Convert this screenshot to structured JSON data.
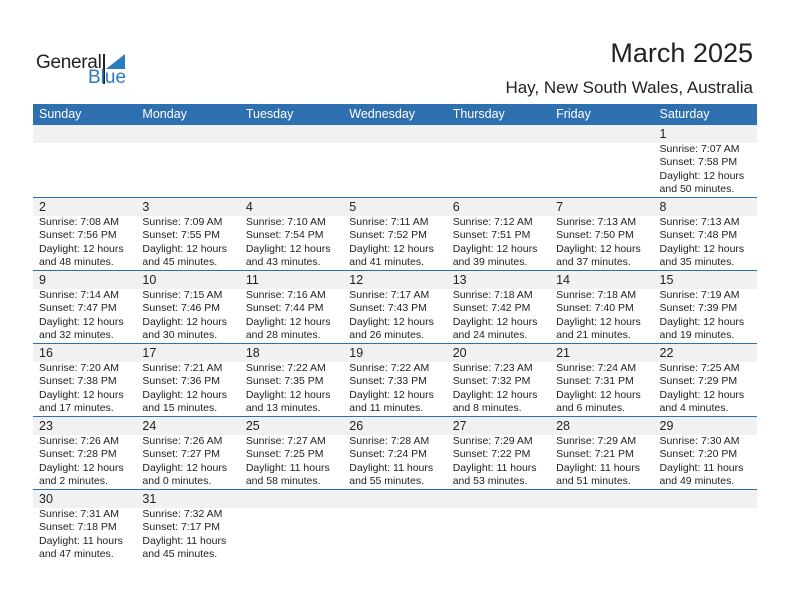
{
  "logo": {
    "text_general": "General",
    "text_blue": "Blue"
  },
  "header": {
    "title": "March 2025",
    "location": "Hay, New South Wales, Australia"
  },
  "colors": {
    "header_bg": "#2e6fb0",
    "accent": "#2b7bc0",
    "strip": "#f1f1f1"
  },
  "weekdays": [
    "Sunday",
    "Monday",
    "Tuesday",
    "Wednesday",
    "Thursday",
    "Friday",
    "Saturday"
  ],
  "weeks": [
    [
      null,
      null,
      null,
      null,
      null,
      null,
      {
        "day": "1",
        "sunrise": "Sunrise: 7:07 AM",
        "sunset": "Sunset: 7:58 PM",
        "daylight": "Daylight: 12 hours",
        "minutes": "and 50 minutes."
      }
    ],
    [
      {
        "day": "2",
        "sunrise": "Sunrise: 7:08 AM",
        "sunset": "Sunset: 7:56 PM",
        "daylight": "Daylight: 12 hours",
        "minutes": "and 48 minutes."
      },
      {
        "day": "3",
        "sunrise": "Sunrise: 7:09 AM",
        "sunset": "Sunset: 7:55 PM",
        "daylight": "Daylight: 12 hours",
        "minutes": "and 45 minutes."
      },
      {
        "day": "4",
        "sunrise": "Sunrise: 7:10 AM",
        "sunset": "Sunset: 7:54 PM",
        "daylight": "Daylight: 12 hours",
        "minutes": "and 43 minutes."
      },
      {
        "day": "5",
        "sunrise": "Sunrise: 7:11 AM",
        "sunset": "Sunset: 7:52 PM",
        "daylight": "Daylight: 12 hours",
        "minutes": "and 41 minutes."
      },
      {
        "day": "6",
        "sunrise": "Sunrise: 7:12 AM",
        "sunset": "Sunset: 7:51 PM",
        "daylight": "Daylight: 12 hours",
        "minutes": "and 39 minutes."
      },
      {
        "day": "7",
        "sunrise": "Sunrise: 7:13 AM",
        "sunset": "Sunset: 7:50 PM",
        "daylight": "Daylight: 12 hours",
        "minutes": "and 37 minutes."
      },
      {
        "day": "8",
        "sunrise": "Sunrise: 7:13 AM",
        "sunset": "Sunset: 7:48 PM",
        "daylight": "Daylight: 12 hours",
        "minutes": "and 35 minutes."
      }
    ],
    [
      {
        "day": "9",
        "sunrise": "Sunrise: 7:14 AM",
        "sunset": "Sunset: 7:47 PM",
        "daylight": "Daylight: 12 hours",
        "minutes": "and 32 minutes."
      },
      {
        "day": "10",
        "sunrise": "Sunrise: 7:15 AM",
        "sunset": "Sunset: 7:46 PM",
        "daylight": "Daylight: 12 hours",
        "minutes": "and 30 minutes."
      },
      {
        "day": "11",
        "sunrise": "Sunrise: 7:16 AM",
        "sunset": "Sunset: 7:44 PM",
        "daylight": "Daylight: 12 hours",
        "minutes": "and 28 minutes."
      },
      {
        "day": "12",
        "sunrise": "Sunrise: 7:17 AM",
        "sunset": "Sunset: 7:43 PM",
        "daylight": "Daylight: 12 hours",
        "minutes": "and 26 minutes."
      },
      {
        "day": "13",
        "sunrise": "Sunrise: 7:18 AM",
        "sunset": "Sunset: 7:42 PM",
        "daylight": "Daylight: 12 hours",
        "minutes": "and 24 minutes."
      },
      {
        "day": "14",
        "sunrise": "Sunrise: 7:18 AM",
        "sunset": "Sunset: 7:40 PM",
        "daylight": "Daylight: 12 hours",
        "minutes": "and 21 minutes."
      },
      {
        "day": "15",
        "sunrise": "Sunrise: 7:19 AM",
        "sunset": "Sunset: 7:39 PM",
        "daylight": "Daylight: 12 hours",
        "minutes": "and 19 minutes."
      }
    ],
    [
      {
        "day": "16",
        "sunrise": "Sunrise: 7:20 AM",
        "sunset": "Sunset: 7:38 PM",
        "daylight": "Daylight: 12 hours",
        "minutes": "and 17 minutes."
      },
      {
        "day": "17",
        "sunrise": "Sunrise: 7:21 AM",
        "sunset": "Sunset: 7:36 PM",
        "daylight": "Daylight: 12 hours",
        "minutes": "and 15 minutes."
      },
      {
        "day": "18",
        "sunrise": "Sunrise: 7:22 AM",
        "sunset": "Sunset: 7:35 PM",
        "daylight": "Daylight: 12 hours",
        "minutes": "and 13 minutes."
      },
      {
        "day": "19",
        "sunrise": "Sunrise: 7:22 AM",
        "sunset": "Sunset: 7:33 PM",
        "daylight": "Daylight: 12 hours",
        "minutes": "and 11 minutes."
      },
      {
        "day": "20",
        "sunrise": "Sunrise: 7:23 AM",
        "sunset": "Sunset: 7:32 PM",
        "daylight": "Daylight: 12 hours",
        "minutes": "and 8 minutes."
      },
      {
        "day": "21",
        "sunrise": "Sunrise: 7:24 AM",
        "sunset": "Sunset: 7:31 PM",
        "daylight": "Daylight: 12 hours",
        "minutes": "and 6 minutes."
      },
      {
        "day": "22",
        "sunrise": "Sunrise: 7:25 AM",
        "sunset": "Sunset: 7:29 PM",
        "daylight": "Daylight: 12 hours",
        "minutes": "and 4 minutes."
      }
    ],
    [
      {
        "day": "23",
        "sunrise": "Sunrise: 7:26 AM",
        "sunset": "Sunset: 7:28 PM",
        "daylight": "Daylight: 12 hours",
        "minutes": "and 2 minutes."
      },
      {
        "day": "24",
        "sunrise": "Sunrise: 7:26 AM",
        "sunset": "Sunset: 7:27 PM",
        "daylight": "Daylight: 12 hours",
        "minutes": "and 0 minutes."
      },
      {
        "day": "25",
        "sunrise": "Sunrise: 7:27 AM",
        "sunset": "Sunset: 7:25 PM",
        "daylight": "Daylight: 11 hours",
        "minutes": "and 58 minutes."
      },
      {
        "day": "26",
        "sunrise": "Sunrise: 7:28 AM",
        "sunset": "Sunset: 7:24 PM",
        "daylight": "Daylight: 11 hours",
        "minutes": "and 55 minutes."
      },
      {
        "day": "27",
        "sunrise": "Sunrise: 7:29 AM",
        "sunset": "Sunset: 7:22 PM",
        "daylight": "Daylight: 11 hours",
        "minutes": "and 53 minutes."
      },
      {
        "day": "28",
        "sunrise": "Sunrise: 7:29 AM",
        "sunset": "Sunset: 7:21 PM",
        "daylight": "Daylight: 11 hours",
        "minutes": "and 51 minutes."
      },
      {
        "day": "29",
        "sunrise": "Sunrise: 7:30 AM",
        "sunset": "Sunset: 7:20 PM",
        "daylight": "Daylight: 11 hours",
        "minutes": "and 49 minutes."
      }
    ],
    [
      {
        "day": "30",
        "sunrise": "Sunrise: 7:31 AM",
        "sunset": "Sunset: 7:18 PM",
        "daylight": "Daylight: 11 hours",
        "minutes": "and 47 minutes."
      },
      {
        "day": "31",
        "sunrise": "Sunrise: 7:32 AM",
        "sunset": "Sunset: 7:17 PM",
        "daylight": "Daylight: 11 hours",
        "minutes": "and 45 minutes."
      },
      null,
      null,
      null,
      null,
      null
    ]
  ]
}
